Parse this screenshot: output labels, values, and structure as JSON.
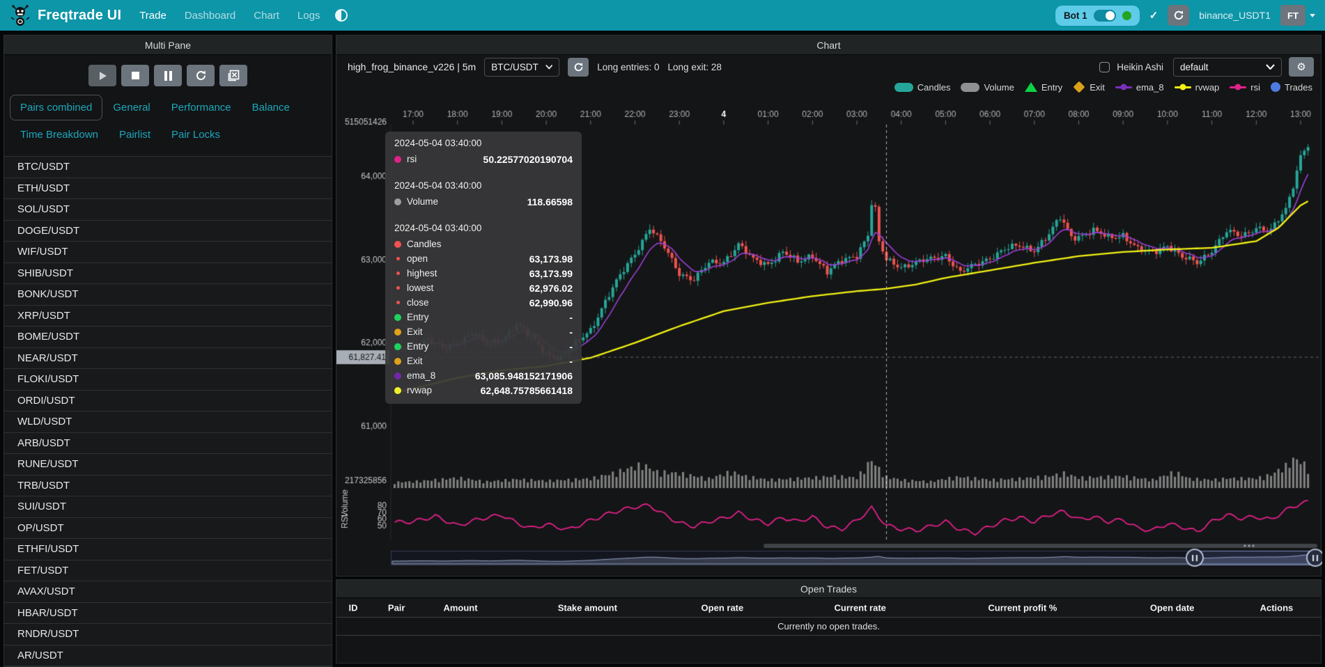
{
  "navbar": {
    "brand": "Freqtrade UI",
    "links": [
      "Trade",
      "Dashboard",
      "Chart",
      "Logs"
    ],
    "active_link": "Trade",
    "bot": {
      "name": "Bot 1",
      "toggle_on": true,
      "status": "online"
    },
    "check_icon": "✓",
    "account": "binance_USDT1",
    "avatar": "FT"
  },
  "left_panel": {
    "title": "Multi Pane",
    "buttons": [
      "play",
      "stop",
      "pause",
      "reload",
      "cancel-open-orders"
    ],
    "tabs": [
      "Pairs combined",
      "General",
      "Performance",
      "Balance",
      "Time Breakdown",
      "Pairlist",
      "Pair Locks"
    ],
    "active_tab": "Pairs combined",
    "pairs": [
      "BTC/USDT",
      "ETH/USDT",
      "SOL/USDT",
      "DOGE/USDT",
      "WIF/USDT",
      "SHIB/USDT",
      "BONK/USDT",
      "XRP/USDT",
      "BOME/USDT",
      "NEAR/USDT",
      "FLOKI/USDT",
      "ORDI/USDT",
      "WLD/USDT",
      "ARB/USDT",
      "RUNE/USDT",
      "TRB/USDT",
      "SUI/USDT",
      "OP/USDT",
      "ETHFI/USDT",
      "FET/USDT",
      "AVAX/USDT",
      "HBAR/USDT",
      "RNDR/USDT",
      "AR/USDT"
    ]
  },
  "chart_panel": {
    "title": "Chart",
    "strategy": "high_frog_binance_v226 | 5m",
    "pair_select": "BTC/USDT",
    "entries": "Long entries: 0",
    "exits": "Long exit: 28",
    "heikin_label": "Heikin Ashi",
    "plot_config_select": "default",
    "legend": [
      {
        "name": "Candles",
        "shape": "pill",
        "color": "#26a69a"
      },
      {
        "name": "Volume",
        "shape": "pill",
        "color": "#8e9091"
      },
      {
        "name": "Entry",
        "shape": "triangle",
        "color": "#0ed145"
      },
      {
        "name": "Exit",
        "shape": "diamond",
        "color": "#d9a21b"
      },
      {
        "name": "ema_8",
        "shape": "line",
        "color": "#7c2fbe"
      },
      {
        "name": "rvwap",
        "shape": "line",
        "color": "#f2f214"
      },
      {
        "name": "rsi",
        "shape": "line",
        "color": "#e0218a"
      },
      {
        "name": "Trades",
        "shape": "circle",
        "color": "#4d7be0"
      }
    ]
  },
  "tooltip": {
    "sections": [
      {
        "date": "2024-05-04 03:40:00",
        "rows": [
          {
            "label": "rsi",
            "value": "50.22577020190704",
            "dot": "#e0218a",
            "size": "big"
          }
        ]
      },
      {
        "date": "2024-05-04 03:40:00",
        "rows": [
          {
            "label": "Volume",
            "value": "118.66598",
            "dot": "#9e9e9e",
            "size": "big"
          }
        ]
      },
      {
        "date": "2024-05-04 03:40:00",
        "rows": [
          {
            "label": "Candles",
            "value": "",
            "dot": "#ef5350",
            "size": "big"
          },
          {
            "label": "open",
            "value": "63,173.98",
            "dot": "#ef5350",
            "size": "small"
          },
          {
            "label": "highest",
            "value": "63,173.99",
            "dot": "#ef5350",
            "size": "small"
          },
          {
            "label": "lowest",
            "value": "62,976.02",
            "dot": "#ef5350",
            "size": "small"
          },
          {
            "label": "close",
            "value": "62,990.96",
            "dot": "#ef5350",
            "size": "small"
          },
          {
            "label": "Entry",
            "value": "-",
            "dot": "#1fd35f",
            "size": "big"
          },
          {
            "label": "Exit",
            "value": "-",
            "dot": "#e0a11a",
            "size": "big"
          },
          {
            "label": "Entry",
            "value": "-",
            "dot": "#1fd35f",
            "size": "big"
          },
          {
            "label": "Exit",
            "value": "-",
            "dot": "#e0a11a",
            "size": "big"
          },
          {
            "label": "ema_8",
            "value": "63,085.948152171906",
            "dot": "#7427ad",
            "size": "big"
          },
          {
            "label": "rvwap",
            "value": "62,648.75785661418",
            "dot": "#f0f02a",
            "size": "big"
          }
        ]
      }
    ]
  },
  "chart_data": {
    "type": "candlestick",
    "pair": "BTC/USDT",
    "timeframe": "5m",
    "time_range": "2024-05-03 17:00 to 2024-05-04 13:00",
    "x_ticks": [
      "17:00",
      "18:00",
      "19:00",
      "20:00",
      "21:00",
      "22:00",
      "23:00",
      "4",
      "01:00",
      "02:00",
      "03:00",
      "04:00",
      "05:00",
      "06:00",
      "07:00",
      "08:00",
      "09:00",
      "10:00",
      "11:00",
      "12:00",
      "13:00"
    ],
    "x_bold_tick": "4",
    "price_ticks": [
      {
        "label": "64,000",
        "value": 64000
      },
      {
        "label": "63,000",
        "value": 63000
      },
      {
        "label": "62,000",
        "value": 62000
      },
      {
        "label": "61,000",
        "value": 61000
      }
    ],
    "price_axis_top_label": "515051426",
    "volume_axis_label": "217325856",
    "volume_pane_label": "Volume",
    "rsi_pane_label": "RSI",
    "rsi_ticks": [
      "80",
      "70",
      "60",
      "50"
    ],
    "current_price_badge": "61,827.41",
    "crosshair": {
      "time_min": 640,
      "time": "2024-05-04 03:40:00",
      "price": 61827.41
    },
    "close_keyframes": [
      [
        -25,
        61900
      ],
      [
        0,
        61980
      ],
      [
        20,
        62050
      ],
      [
        40,
        61920
      ],
      [
        60,
        62000
      ],
      [
        80,
        62130
      ],
      [
        100,
        61970
      ],
      [
        120,
        62040
      ],
      [
        140,
        62230
      ],
      [
        160,
        62060
      ],
      [
        180,
        61870
      ],
      [
        200,
        61820
      ],
      [
        220,
        61990
      ],
      [
        240,
        62160
      ],
      [
        260,
        62500
      ],
      [
        280,
        62800
      ],
      [
        300,
        63080
      ],
      [
        320,
        63380
      ],
      [
        340,
        63140
      ],
      [
        360,
        62840
      ],
      [
        380,
        62760
      ],
      [
        400,
        62950
      ],
      [
        420,
        62980
      ],
      [
        440,
        63180
      ],
      [
        460,
        62990
      ],
      [
        480,
        62950
      ],
      [
        500,
        63090
      ],
      [
        520,
        62960
      ],
      [
        540,
        63060
      ],
      [
        560,
        62850
      ],
      [
        580,
        62980
      ],
      [
        600,
        63060
      ],
      [
        615,
        63300
      ],
      [
        622,
        63820
      ],
      [
        630,
        63200
      ],
      [
        640,
        62990
      ],
      [
        660,
        62920
      ],
      [
        680,
        62960
      ],
      [
        700,
        63000
      ],
      [
        720,
        63060
      ],
      [
        740,
        62840
      ],
      [
        760,
        62930
      ],
      [
        780,
        63030
      ],
      [
        800,
        63120
      ],
      [
        820,
        63160
      ],
      [
        840,
        63120
      ],
      [
        860,
        63300
      ],
      [
        875,
        63500
      ],
      [
        890,
        63280
      ],
      [
        900,
        63280
      ],
      [
        920,
        63340
      ],
      [
        940,
        63260
      ],
      [
        960,
        63300
      ],
      [
        980,
        63120
      ],
      [
        1000,
        63080
      ],
      [
        1020,
        63180
      ],
      [
        1040,
        63020
      ],
      [
        1060,
        62960
      ],
      [
        1080,
        63120
      ],
      [
        1100,
        63330
      ],
      [
        1120,
        63280
      ],
      [
        1140,
        63390
      ],
      [
        1160,
        63340
      ],
      [
        1180,
        63600
      ],
      [
        1190,
        63900
      ],
      [
        1200,
        64250
      ],
      [
        1210,
        64380
      ]
    ],
    "rvwap_keyframes": [
      [
        -25,
        61400
      ],
      [
        0,
        61450
      ],
      [
        60,
        61580
      ],
      [
        120,
        61670
      ],
      [
        180,
        61720
      ],
      [
        240,
        61820
      ],
      [
        300,
        62000
      ],
      [
        360,
        62200
      ],
      [
        420,
        62380
      ],
      [
        480,
        62480
      ],
      [
        540,
        62560
      ],
      [
        600,
        62620
      ],
      [
        640,
        62649
      ],
      [
        680,
        62700
      ],
      [
        720,
        62780
      ],
      [
        780,
        62870
      ],
      [
        840,
        62960
      ],
      [
        900,
        63040
      ],
      [
        960,
        63090
      ],
      [
        1020,
        63120
      ],
      [
        1080,
        63140
      ],
      [
        1140,
        63220
      ],
      [
        1170,
        63380
      ],
      [
        1200,
        63650
      ],
      [
        1210,
        63700
      ]
    ],
    "volume_keyframes": [
      [
        -25,
        0.2
      ],
      [
        0,
        0.22
      ],
      [
        40,
        0.3
      ],
      [
        60,
        0.35
      ],
      [
        100,
        0.22
      ],
      [
        140,
        0.3
      ],
      [
        180,
        0.25
      ],
      [
        240,
        0.32
      ],
      [
        270,
        0.5
      ],
      [
        290,
        0.65
      ],
      [
        310,
        0.8
      ],
      [
        330,
        0.55
      ],
      [
        360,
        0.5
      ],
      [
        400,
        0.32
      ],
      [
        430,
        0.55
      ],
      [
        450,
        0.4
      ],
      [
        480,
        0.28
      ],
      [
        540,
        0.35
      ],
      [
        570,
        0.4
      ],
      [
        600,
        0.35
      ],
      [
        620,
        0.95
      ],
      [
        635,
        0.5
      ],
      [
        640,
        0.38
      ],
      [
        660,
        0.28
      ],
      [
        700,
        0.22
      ],
      [
        720,
        0.32
      ],
      [
        740,
        0.38
      ],
      [
        780,
        0.28
      ],
      [
        820,
        0.32
      ],
      [
        860,
        0.4
      ],
      [
        880,
        0.5
      ],
      [
        900,
        0.35
      ],
      [
        960,
        0.4
      ],
      [
        1000,
        0.28
      ],
      [
        1030,
        0.55
      ],
      [
        1050,
        0.32
      ],
      [
        1080,
        0.28
      ],
      [
        1100,
        0.33
      ],
      [
        1140,
        0.33
      ],
      [
        1160,
        0.45
      ],
      [
        1180,
        0.75
      ],
      [
        1192,
        1.0
      ],
      [
        1200,
        0.9
      ],
      [
        1210,
        0.7
      ]
    ],
    "rsi_keyframes": [
      [
        -25,
        55
      ],
      [
        0,
        56
      ],
      [
        30,
        64
      ],
      [
        60,
        50
      ],
      [
        90,
        60
      ],
      [
        120,
        66
      ],
      [
        140,
        54
      ],
      [
        160,
        46
      ],
      [
        180,
        52
      ],
      [
        210,
        44
      ],
      [
        240,
        58
      ],
      [
        270,
        70
      ],
      [
        300,
        78
      ],
      [
        320,
        80
      ],
      [
        340,
        66
      ],
      [
        360,
        54
      ],
      [
        380,
        49
      ],
      [
        400,
        56
      ],
      [
        420,
        61
      ],
      [
        440,
        69
      ],
      [
        460,
        59
      ],
      [
        480,
        53
      ],
      [
        500,
        62
      ],
      [
        520,
        56
      ],
      [
        540,
        63
      ],
      [
        560,
        48
      ],
      [
        580,
        45
      ],
      [
        600,
        58
      ],
      [
        620,
        76
      ],
      [
        640,
        50.2
      ],
      [
        660,
        45
      ],
      [
        680,
        43
      ],
      [
        700,
        49
      ],
      [
        720,
        56
      ],
      [
        740,
        44
      ],
      [
        760,
        39
      ],
      [
        780,
        49
      ],
      [
        800,
        58
      ],
      [
        820,
        62
      ],
      [
        840,
        56
      ],
      [
        860,
        66
      ],
      [
        880,
        71
      ],
      [
        900,
        59
      ],
      [
        920,
        63
      ],
      [
        940,
        56
      ],
      [
        960,
        59
      ],
      [
        980,
        46
      ],
      [
        1000,
        43
      ],
      [
        1020,
        53
      ],
      [
        1040,
        48
      ],
      [
        1060,
        41
      ],
      [
        1080,
        56
      ],
      [
        1100,
        66
      ],
      [
        1120,
        61
      ],
      [
        1140,
        63
      ],
      [
        1160,
        59
      ],
      [
        1180,
        73
      ],
      [
        1200,
        83
      ],
      [
        1210,
        85
      ]
    ],
    "hovered_candle": {
      "time": "2024-05-04 03:40:00",
      "open": 63173.98,
      "high": 63173.99,
      "low": 62976.02,
      "close": 62990.96,
      "volume": 118.66598,
      "ema_8": 63085.948152171906,
      "rvwap": 62648.75785661418,
      "rsi": 50.22577020190704
    }
  },
  "open_trades": {
    "title": "Open Trades",
    "columns": [
      "ID",
      "Pair",
      "Amount",
      "Stake amount",
      "Open rate",
      "Current rate",
      "Current profit %",
      "Open date",
      "Actions"
    ],
    "empty_text": "Currently no open trades."
  },
  "colors": {
    "navbar": "#0d95a8",
    "tab_text": "#1ba7bd",
    "candle_up": "#26a69a",
    "candle_down": "#ef5350",
    "ema": "#9b3fd6",
    "rvwap": "#f2f214",
    "rsi": "#e0218a",
    "volume_bar": "#8f8f8f",
    "price_badge_bg": "#a8aeb5",
    "axis_text": "#c4c7ca"
  }
}
